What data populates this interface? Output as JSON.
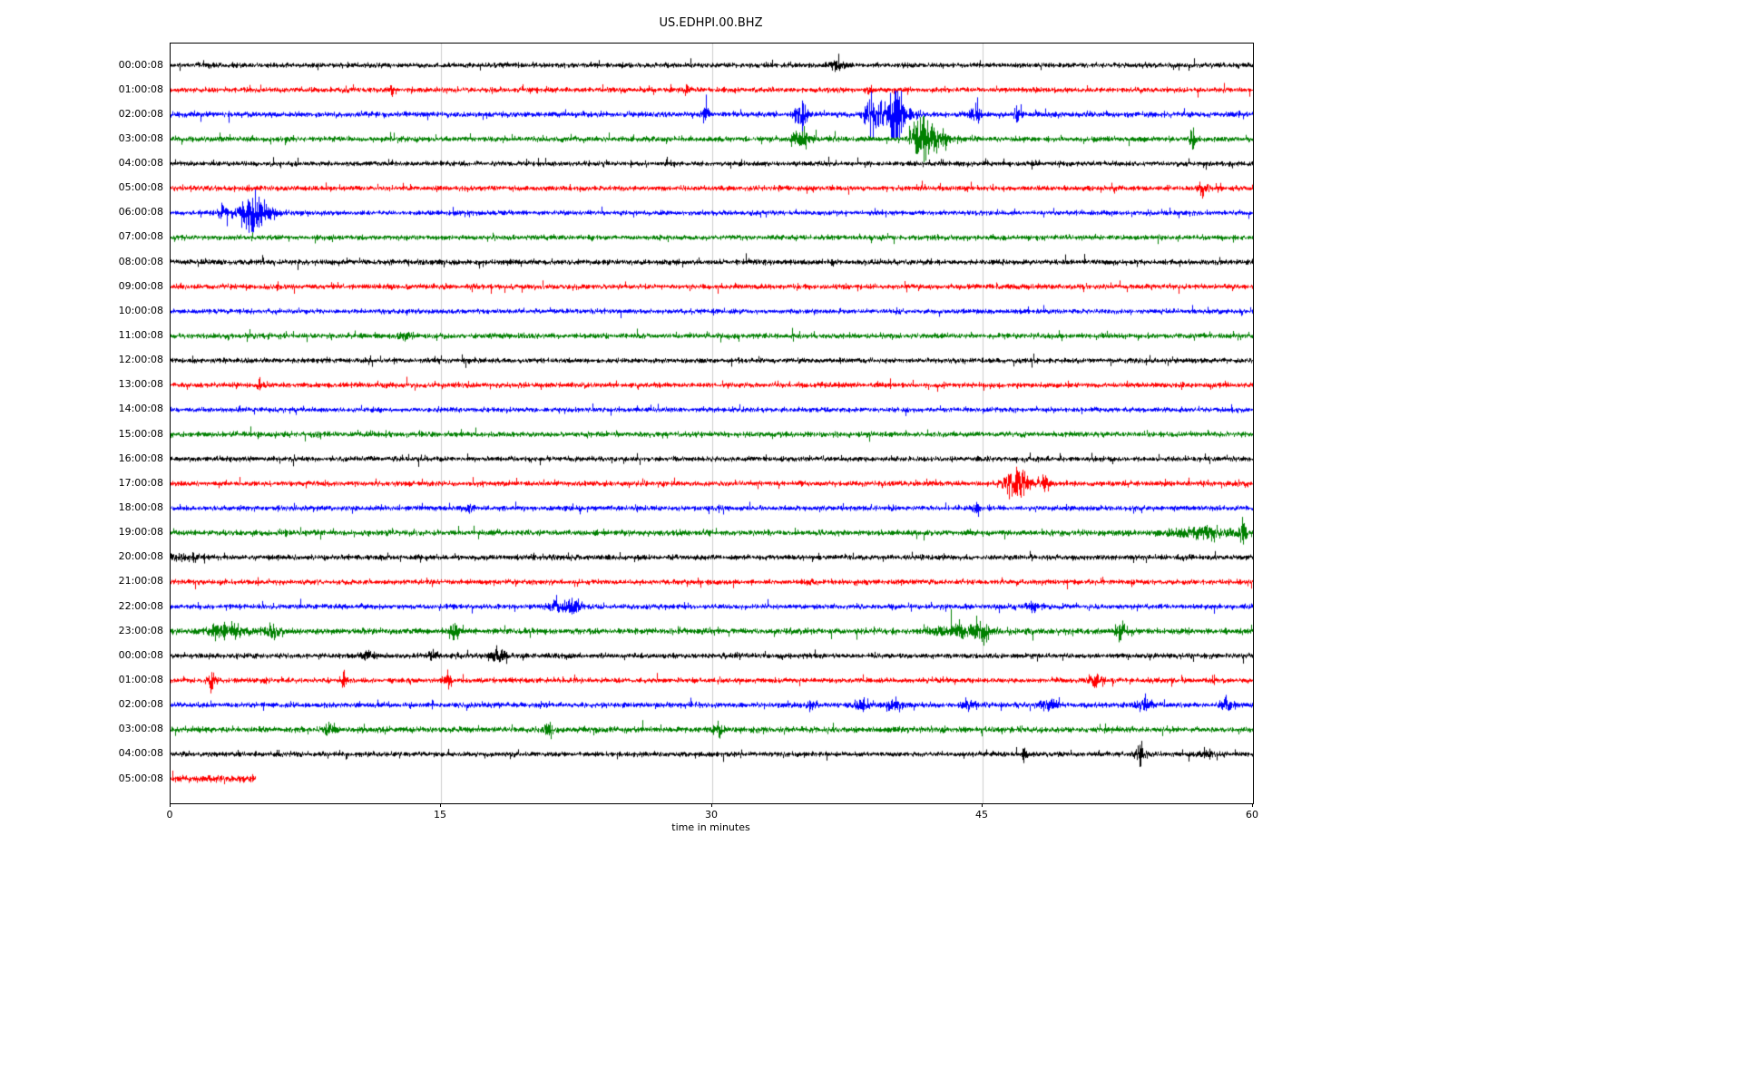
{
  "chart_data": {
    "type": "line",
    "subtype": "seismogram-dayplot",
    "title": "US.EDHPI.00.BHZ",
    "xlabel": "time in minutes",
    "xlim": [
      0,
      60
    ],
    "x_ticks": [
      0,
      15,
      30,
      45,
      60
    ],
    "grid_on": true,
    "grid_color": "#cccccc",
    "trace_color_cycle": [
      "#000000",
      "#ff0000",
      "#0000ff",
      "#008000"
    ],
    "rows": [
      {
        "label": "00:00:08",
        "color": "#000000",
        "end": 60,
        "amp": 1.0
      },
      {
        "label": "01:00:08",
        "color": "#ff0000",
        "end": 60,
        "amp": 1.0
      },
      {
        "label": "02:00:08",
        "color": "#0000ff",
        "end": 60,
        "amp": 1.05
      },
      {
        "label": "03:00:08",
        "color": "#008000",
        "end": 60,
        "amp": 1.05
      },
      {
        "label": "04:00:08",
        "color": "#000000",
        "end": 60,
        "amp": 0.95
      },
      {
        "label": "05:00:08",
        "color": "#ff0000",
        "end": 60,
        "amp": 1.0
      },
      {
        "label": "06:00:08",
        "color": "#0000ff",
        "end": 60,
        "amp": 0.95
      },
      {
        "label": "07:00:08",
        "color": "#008000",
        "end": 60,
        "amp": 1.0
      },
      {
        "label": "08:00:08",
        "color": "#000000",
        "end": 60,
        "amp": 1.05
      },
      {
        "label": "09:00:08",
        "color": "#ff0000",
        "end": 60,
        "amp": 1.0
      },
      {
        "label": "10:00:08",
        "color": "#0000ff",
        "end": 60,
        "amp": 0.95
      },
      {
        "label": "11:00:08",
        "color": "#008000",
        "end": 60,
        "amp": 1.05
      },
      {
        "label": "12:00:08",
        "color": "#000000",
        "end": 60,
        "amp": 1.0
      },
      {
        "label": "13:00:08",
        "color": "#ff0000",
        "end": 60,
        "amp": 1.0
      },
      {
        "label": "14:00:08",
        "color": "#0000ff",
        "end": 60,
        "amp": 0.95
      },
      {
        "label": "15:00:08",
        "color": "#008000",
        "end": 60,
        "amp": 1.05
      },
      {
        "label": "16:00:08",
        "color": "#000000",
        "end": 60,
        "amp": 1.0
      },
      {
        "label": "17:00:08",
        "color": "#ff0000",
        "end": 60,
        "amp": 1.0
      },
      {
        "label": "18:00:08",
        "color": "#0000ff",
        "end": 60,
        "amp": 1.0
      },
      {
        "label": "19:00:08",
        "color": "#008000",
        "end": 60,
        "amp": 1.1
      },
      {
        "label": "20:00:08",
        "color": "#000000",
        "end": 60,
        "amp": 1.05
      },
      {
        "label": "21:00:08",
        "color": "#ff0000",
        "end": 60,
        "amp": 1.0
      },
      {
        "label": "22:00:08",
        "color": "#0000ff",
        "end": 60,
        "amp": 1.0
      },
      {
        "label": "23:00:08",
        "color": "#008000",
        "end": 60,
        "amp": 1.15
      },
      {
        "label": "00:00:08",
        "color": "#000000",
        "end": 60,
        "amp": 1.0
      },
      {
        "label": "01:00:08",
        "color": "#ff0000",
        "end": 60,
        "amp": 1.0
      },
      {
        "label": "02:00:08",
        "color": "#0000ff",
        "end": 60,
        "amp": 1.05
      },
      {
        "label": "03:00:08",
        "color": "#008000",
        "end": 60,
        "amp": 1.15
      },
      {
        "label": "04:00:08",
        "color": "#000000",
        "end": 60,
        "amp": 1.0
      },
      {
        "label": "05:00:08",
        "color": "#ff0000",
        "end": 4.7,
        "amp": 1.4
      }
    ],
    "events": [
      {
        "row": 0,
        "t": 36.9,
        "dur": 0.35,
        "amp": 1.6
      },
      {
        "row": 1,
        "t": 12.2,
        "dur": 0.12,
        "amp": 2.5
      },
      {
        "row": 1,
        "t": 28.6,
        "dur": 0.12,
        "amp": 1.8
      },
      {
        "row": 1,
        "t": 38.6,
        "dur": 0.2,
        "amp": 1.8
      },
      {
        "row": 2,
        "t": 29.6,
        "dur": 0.25,
        "amp": 3.0
      },
      {
        "row": 2,
        "t": 34.9,
        "dur": 0.35,
        "amp": 5.0
      },
      {
        "row": 2,
        "t": 38.8,
        "dur": 0.3,
        "amp": 6.0
      },
      {
        "row": 2,
        "t": 40.0,
        "dur": 0.9,
        "amp": 6.0
      },
      {
        "row": 2,
        "t": 40.2,
        "dur": 0.25,
        "amp": 12.0
      },
      {
        "row": 2,
        "t": 44.6,
        "dur": 0.25,
        "amp": 5.0
      },
      {
        "row": 2,
        "t": 46.9,
        "dur": 0.2,
        "amp": 3.5
      },
      {
        "row": 3,
        "t": 34.9,
        "dur": 0.5,
        "amp": 3.0
      },
      {
        "row": 3,
        "t": 41.6,
        "dur": 0.5,
        "amp": 8.0
      },
      {
        "row": 3,
        "t": 42.3,
        "dur": 0.9,
        "amp": 3.0
      },
      {
        "row": 3,
        "t": 56.6,
        "dur": 0.12,
        "amp": 6.0
      },
      {
        "row": 5,
        "t": 57.2,
        "dur": 0.25,
        "amp": 2.5
      },
      {
        "row": 6,
        "t": 2.9,
        "dur": 0.25,
        "amp": 2.5
      },
      {
        "row": 6,
        "t": 4.4,
        "dur": 0.55,
        "amp": 8.0
      },
      {
        "row": 6,
        "t": 5.2,
        "dur": 0.7,
        "amp": 3.0
      },
      {
        "row": 11,
        "t": 13.0,
        "dur": 0.5,
        "amp": 0.9
      },
      {
        "row": 13,
        "t": 4.9,
        "dur": 0.1,
        "amp": 2.0
      },
      {
        "row": 17,
        "t": 46.9,
        "dur": 0.6,
        "amp": 6.0
      },
      {
        "row": 17,
        "t": 48.4,
        "dur": 0.35,
        "amp": 3.0
      },
      {
        "row": 18,
        "t": 16.5,
        "dur": 0.3,
        "amp": 1.2
      },
      {
        "row": 18,
        "t": 44.6,
        "dur": 0.3,
        "amp": 1.6
      },
      {
        "row": 19,
        "t": 57.3,
        "dur": 1.6,
        "amp": 1.8
      },
      {
        "row": 19,
        "t": 59.4,
        "dur": 0.2,
        "amp": 4.5
      },
      {
        "row": 20,
        "t": 0.6,
        "dur": 1.0,
        "amp": 0.8
      },
      {
        "row": 22,
        "t": 21.6,
        "dur": 0.7,
        "amp": 2.4
      },
      {
        "row": 22,
        "t": 22.4,
        "dur": 0.3,
        "amp": 2.0
      },
      {
        "row": 22,
        "t": 47.8,
        "dur": 0.3,
        "amp": 1.8
      },
      {
        "row": 23,
        "t": 2.6,
        "dur": 0.5,
        "amp": 2.2
      },
      {
        "row": 23,
        "t": 3.6,
        "dur": 0.8,
        "amp": 1.8
      },
      {
        "row": 23,
        "t": 5.6,
        "dur": 0.4,
        "amp": 2.6
      },
      {
        "row": 23,
        "t": 15.7,
        "dur": 0.3,
        "amp": 2.4
      },
      {
        "row": 23,
        "t": 43.7,
        "dur": 1.4,
        "amp": 1.8
      },
      {
        "row": 23,
        "t": 44.9,
        "dur": 0.4,
        "amp": 2.6
      },
      {
        "row": 23,
        "t": 52.6,
        "dur": 0.3,
        "amp": 3.0
      },
      {
        "row": 24,
        "t": 10.9,
        "dur": 0.35,
        "amp": 2.4
      },
      {
        "row": 24,
        "t": 14.5,
        "dur": 0.3,
        "amp": 1.4
      },
      {
        "row": 24,
        "t": 18.1,
        "dur": 0.45,
        "amp": 2.2
      },
      {
        "row": 25,
        "t": 2.3,
        "dur": 0.18,
        "amp": 4.5
      },
      {
        "row": 25,
        "t": 9.6,
        "dur": 0.12,
        "amp": 4.0
      },
      {
        "row": 25,
        "t": 15.4,
        "dur": 0.2,
        "amp": 3.2
      },
      {
        "row": 25,
        "t": 51.3,
        "dur": 0.4,
        "amp": 2.2
      },
      {
        "row": 25,
        "t": 57.8,
        "dur": 0.2,
        "amp": 1.6
      },
      {
        "row": 26,
        "t": 35.5,
        "dur": 0.3,
        "amp": 1.6
      },
      {
        "row": 26,
        "t": 38.3,
        "dur": 0.4,
        "amp": 1.8
      },
      {
        "row": 26,
        "t": 40.1,
        "dur": 0.4,
        "amp": 2.2
      },
      {
        "row": 26,
        "t": 44.2,
        "dur": 0.3,
        "amp": 1.8
      },
      {
        "row": 26,
        "t": 48.6,
        "dur": 0.5,
        "amp": 2.0
      },
      {
        "row": 26,
        "t": 53.9,
        "dur": 0.5,
        "amp": 2.0
      },
      {
        "row": 26,
        "t": 58.6,
        "dur": 0.4,
        "amp": 1.8
      },
      {
        "row": 27,
        "t": 8.9,
        "dur": 0.4,
        "amp": 1.3
      },
      {
        "row": 27,
        "t": 20.9,
        "dur": 0.25,
        "amp": 2.6
      },
      {
        "row": 27,
        "t": 30.4,
        "dur": 0.3,
        "amp": 1.8
      },
      {
        "row": 28,
        "t": 47.3,
        "dur": 0.15,
        "amp": 3.0
      },
      {
        "row": 28,
        "t": 53.8,
        "dur": 0.3,
        "amp": 3.5
      },
      {
        "row": 28,
        "t": 57.5,
        "dur": 0.3,
        "amp": 1.4
      }
    ]
  }
}
